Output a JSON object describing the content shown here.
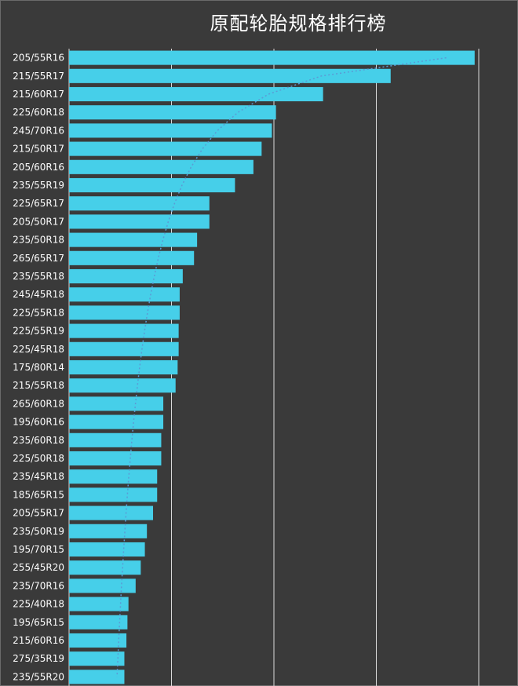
{
  "chart_data": {
    "type": "bar",
    "orientation": "horizontal",
    "title": "原配轮胎规格排行榜",
    "colors": {
      "background": "#3a3a3a",
      "bar": "#46cfe9",
      "grid": "#d9d9d9",
      "trendline": "#5b9bd5",
      "text": "#ffffff"
    },
    "grid": true,
    "trendline": "dotted-power",
    "xlim": [
      0,
      400
    ],
    "xticks": [
      0,
      100,
      200,
      300,
      400
    ],
    "categories": [
      "205/55R16",
      "215/55R17",
      "215/60R17",
      "225/60R18",
      "245/70R16",
      "215/50R17",
      "205/60R16",
      "235/55R19",
      "225/65R17",
      "205/50R17",
      "235/50R18",
      "265/65R17",
      "235/55R18",
      "245/45R18",
      "225/55R18",
      "225/55R19",
      "225/45R18",
      "175/80R14",
      "215/55R18",
      "265/60R18",
      "195/60R16",
      "235/60R18",
      "225/50R18",
      "235/45R18",
      "185/65R15",
      "205/55R17",
      "235/50R19",
      "195/70R15",
      "255/45R20",
      "235/70R16",
      "225/40R18",
      "195/65R15",
      "215/60R16",
      "275/35R19",
      "235/55R20"
    ],
    "values": [
      396,
      314,
      248,
      202,
      198,
      188,
      180,
      162,
      137,
      137,
      125,
      122,
      111,
      108,
      108,
      107,
      107,
      106,
      104,
      92,
      92,
      90,
      90,
      86,
      86,
      82,
      76,
      74,
      70,
      65,
      58,
      57,
      56,
      54,
      54
    ]
  }
}
